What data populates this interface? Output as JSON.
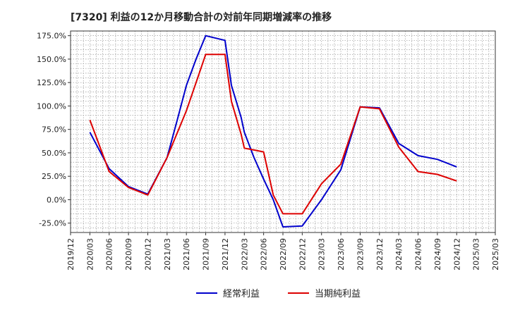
{
  "chart_data": {
    "type": "line",
    "title": "[7320]  利益の12か月移動合計の対前年同期増減率の推移",
    "xlabel": "",
    "ylabel": "",
    "ylim": [
      -35,
      180
    ],
    "yticks": [
      -25,
      0,
      25,
      50,
      75,
      100,
      125,
      150,
      175
    ],
    "ytick_labels": [
      "-25.0%",
      "0.0%",
      "25.0%",
      "50.0%",
      "75.0%",
      "100.0%",
      "125.0%",
      "150.0%",
      "175.0%"
    ],
    "xlim": [
      0,
      66
    ],
    "xticks": [
      0,
      3,
      6,
      9,
      12,
      15,
      18,
      21,
      24,
      27,
      30,
      33,
      36,
      39,
      42,
      45,
      48,
      51,
      54,
      57,
      60,
      63,
      66
    ],
    "xtick_labels": [
      "2019/12",
      "2020/03",
      "2020/06",
      "2020/09",
      "2020/12",
      "2021/03",
      "2021/06",
      "2021/09",
      "2021/12",
      "2022/03",
      "2022/06",
      "2022/09",
      "2022/12",
      "2023/03",
      "2023/06",
      "2023/09",
      "2023/12",
      "2024/03",
      "2024/06",
      "2024/09",
      "2024/12",
      "2025/03",
      "2025/03"
    ],
    "grid": true,
    "legend_position": "bottom",
    "x": [
      3,
      6,
      9,
      12,
      15,
      16.5,
      18,
      19.5,
      21,
      24,
      25,
      26.5,
      27,
      28.5,
      30,
      31.5,
      33,
      36,
      39,
      42,
      45,
      48,
      51,
      54,
      57,
      60
    ],
    "series": [
      {
        "name": "経常利益",
        "color": "#0000cc",
        "values": [
          72,
          33,
          14,
          6,
          45,
          83,
          122,
          150,
          175,
          170,
          122,
          88,
          72,
          45,
          22,
          0,
          -29,
          -28,
          0,
          32,
          99,
          98,
          60,
          47,
          43,
          35
        ]
      },
      {
        "name": "当期純利益",
        "color": "#dd0000",
        "values": [
          85,
          30,
          13,
          5,
          45,
          70,
          95,
          125,
          155,
          155,
          105,
          70,
          55,
          53,
          51,
          5,
          -15,
          -15,
          17,
          38,
          99,
          97,
          56,
          30,
          27,
          20
        ]
      }
    ]
  }
}
